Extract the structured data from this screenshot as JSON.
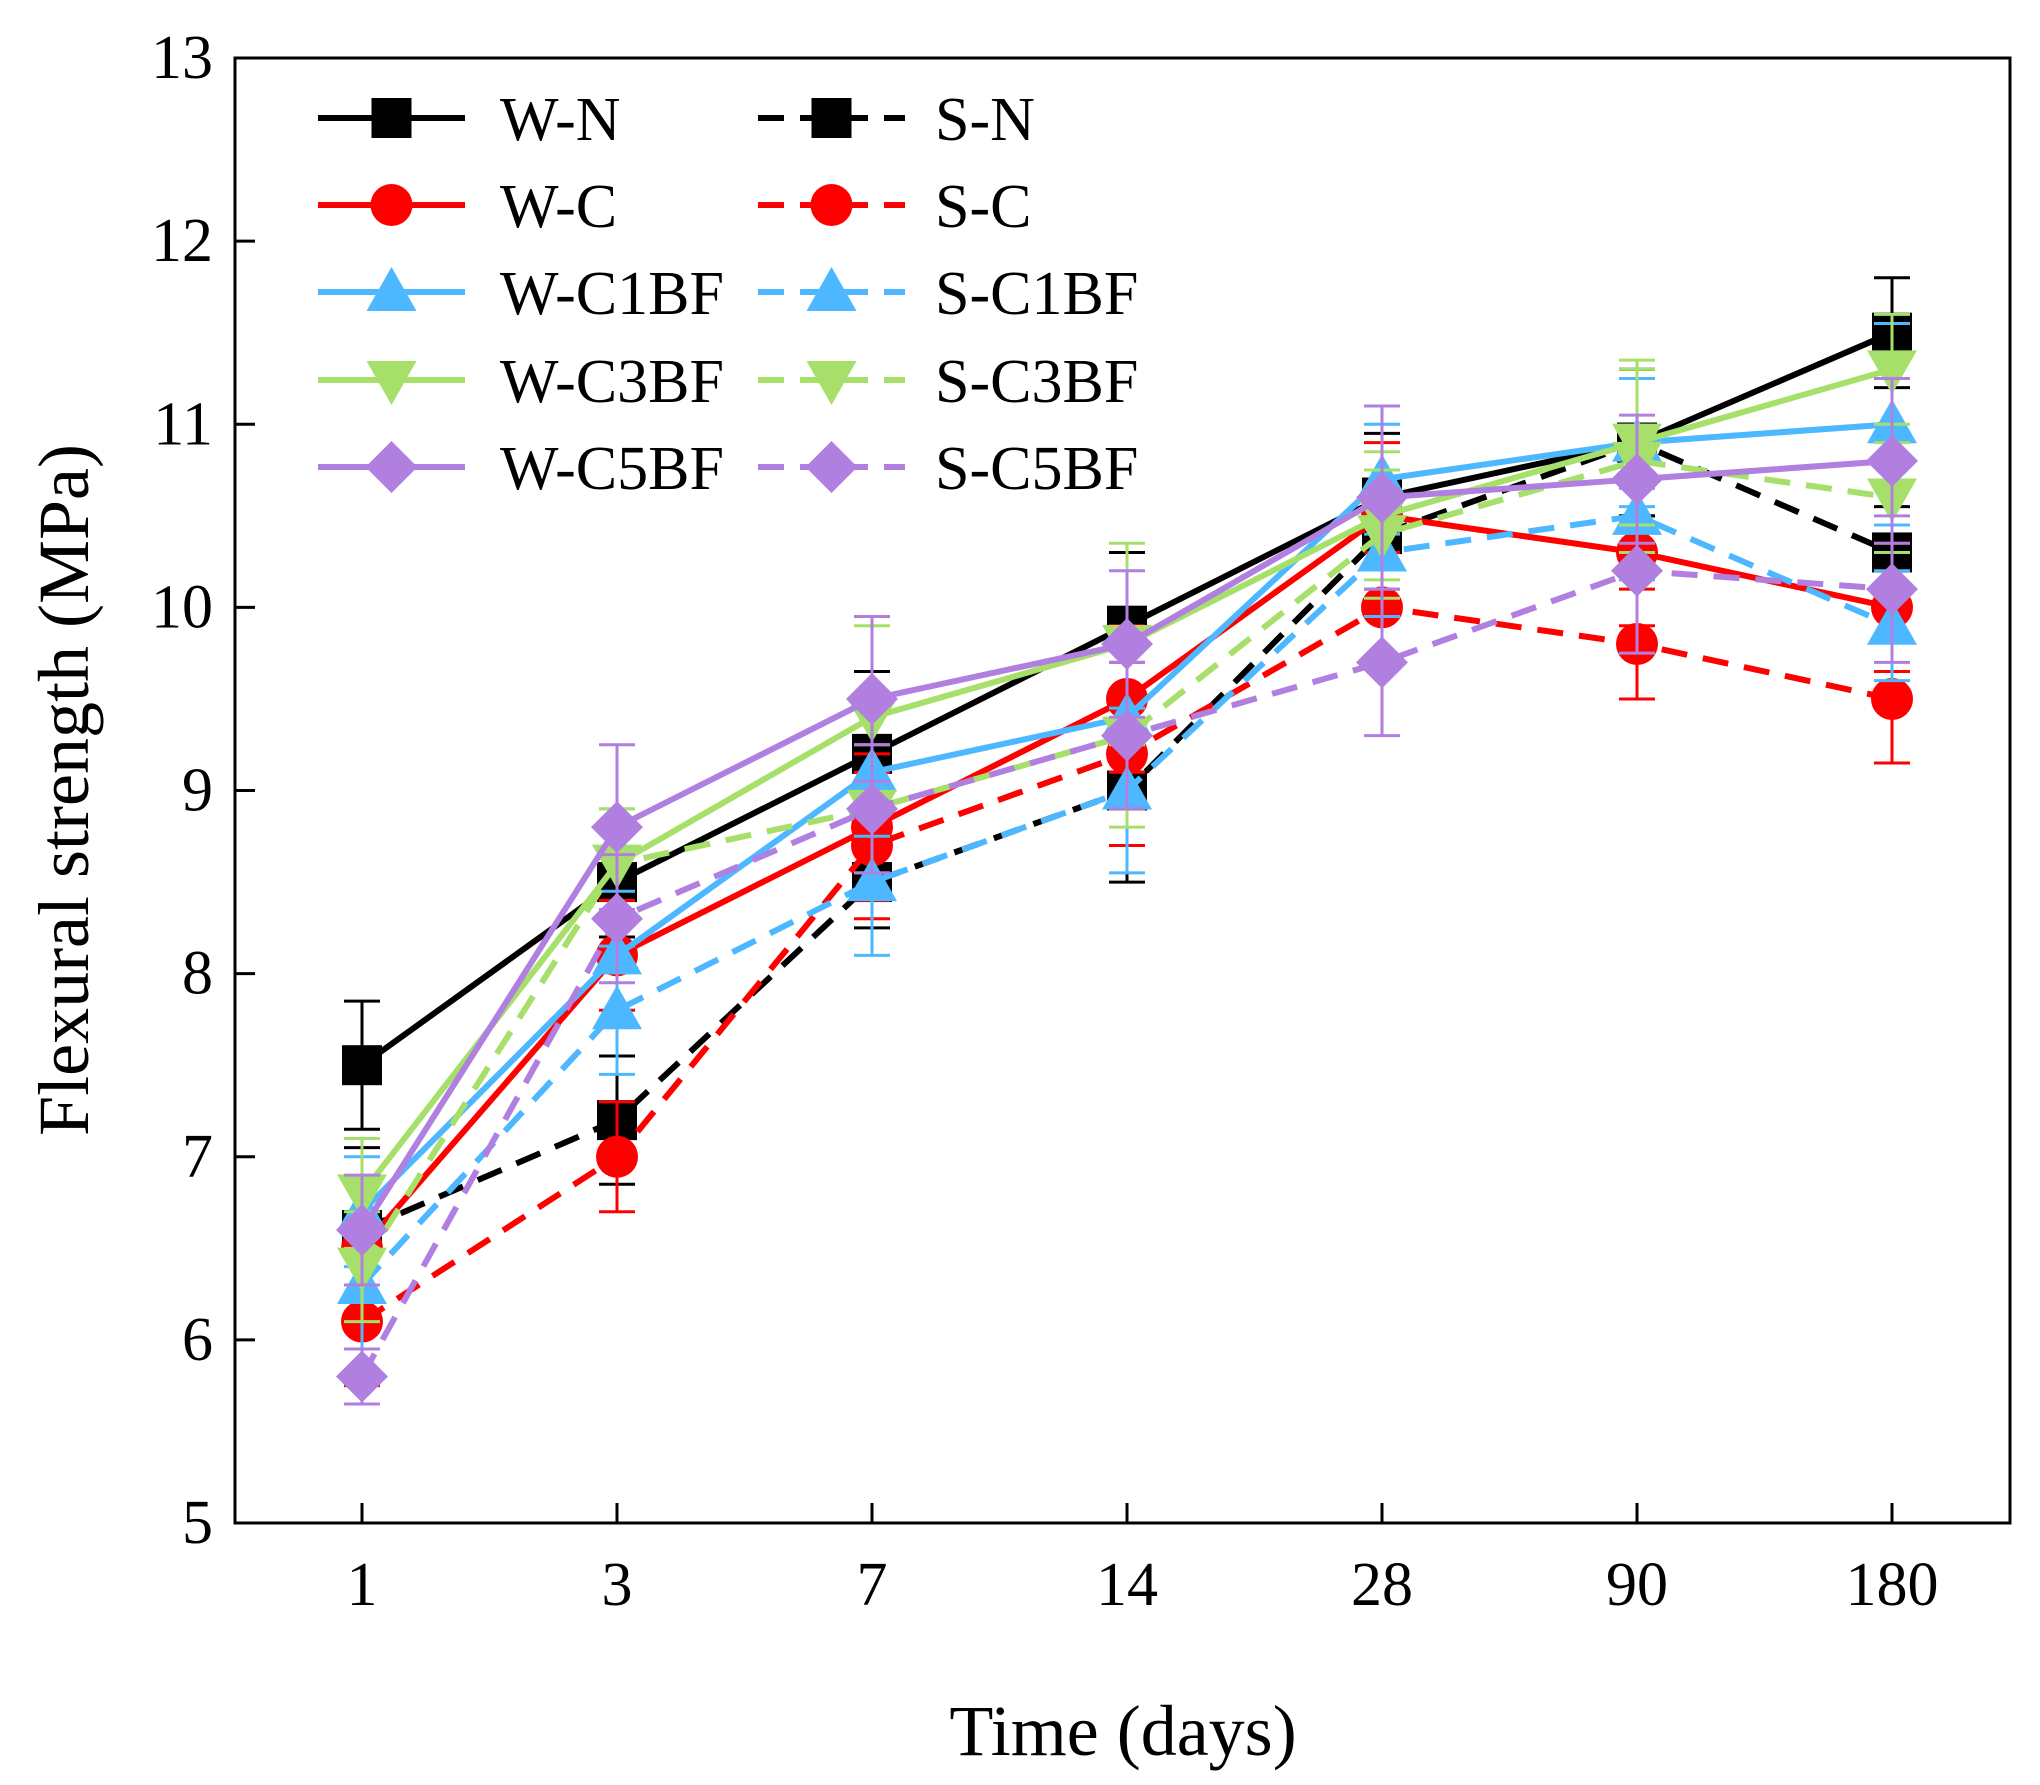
{
  "chart_data": {
    "type": "line",
    "title": "",
    "xlabel": "Time (days)",
    "ylabel": "Flexural strength (MPa)",
    "categories": [
      "1",
      "3",
      "7",
      "14",
      "28",
      "90",
      "180"
    ],
    "ylim": [
      5,
      13
    ],
    "yticks": [
      5,
      6,
      7,
      8,
      9,
      10,
      11,
      12,
      13
    ],
    "grid": false,
    "legend_position": "top-left",
    "series": [
      {
        "name": "W-N",
        "color": "#000000",
        "dash": "solid",
        "marker": "square",
        "values": [
          7.5,
          8.5,
          9.2,
          9.9,
          10.6,
          10.9,
          11.5
        ],
        "errors": [
          0.35,
          0.3,
          0.45,
          0.4,
          0.35,
          0.4,
          0.3
        ]
      },
      {
        "name": "S-N",
        "color": "#000000",
        "dash": "dashed",
        "marker": "square",
        "values": [
          6.6,
          7.2,
          8.5,
          9.0,
          10.4,
          10.9,
          10.3
        ],
        "errors": [
          0.45,
          0.35,
          0.25,
          0.5,
          0.35,
          0.4,
          0.25
        ]
      },
      {
        "name": "W-C",
        "color": "#ff0000",
        "dash": "solid",
        "marker": "circle",
        "values": [
          6.5,
          8.1,
          8.8,
          9.5,
          10.5,
          10.3,
          10.0
        ],
        "errors": [
          0.35,
          0.3,
          0.4,
          0.4,
          0.4,
          0.4,
          0.35
        ]
      },
      {
        "name": "S-C",
        "color": "#ff0000",
        "dash": "dashed",
        "marker": "circle",
        "values": [
          6.1,
          7.0,
          8.7,
          9.2,
          10.0,
          9.8,
          9.5
        ],
        "errors": [
          0.35,
          0.3,
          0.4,
          0.5,
          0.3,
          0.3,
          0.35
        ]
      },
      {
        "name": "W-C1BF",
        "color": "#4db8ff",
        "dash": "solid",
        "marker": "triangle-up",
        "values": [
          6.7,
          8.1,
          9.1,
          9.4,
          10.7,
          10.9,
          11.0
        ],
        "errors": [
          0.3,
          0.35,
          0.35,
          0.45,
          0.3,
          0.35,
          0.55
        ]
      },
      {
        "name": "S-C1BF",
        "color": "#4db8ff",
        "dash": "dashed",
        "marker": "triangle-up",
        "values": [
          6.3,
          7.8,
          8.5,
          9.0,
          10.3,
          10.5,
          9.9
        ],
        "errors": [
          0.35,
          0.35,
          0.4,
          0.45,
          0.35,
          0.35,
          0.3
        ]
      },
      {
        "name": "W-C3BF",
        "color": "#a6e06a",
        "dash": "solid",
        "marker": "triangle-down",
        "values": [
          6.8,
          8.6,
          9.4,
          9.8,
          10.5,
          10.9,
          11.3
        ],
        "errors": [
          0.3,
          0.3,
          0.5,
          0.55,
          0.35,
          0.45,
          0.3
        ]
      },
      {
        "name": "S-C3BF",
        "color": "#a6e06a",
        "dash": "dashed",
        "marker": "triangle-down",
        "values": [
          6.4,
          8.6,
          8.9,
          9.3,
          10.4,
          10.8,
          10.6
        ],
        "errors": [
          0.3,
          0.3,
          0.35,
          0.5,
          0.35,
          0.5,
          0.3
        ]
      },
      {
        "name": "W-C5BF",
        "color": "#b07fe0",
        "dash": "solid",
        "marker": "diamond",
        "values": [
          6.6,
          8.8,
          9.5,
          9.8,
          10.6,
          10.7,
          10.8
        ],
        "errors": [
          0.3,
          0.45,
          0.45,
          0.4,
          0.5,
          0.35,
          0.45
        ]
      },
      {
        "name": "S-C5BF",
        "color": "#b07fe0",
        "dash": "dashed",
        "marker": "diamond",
        "values": [
          5.8,
          8.3,
          8.9,
          9.3,
          9.7,
          10.2,
          10.1
        ],
        "errors": [
          0.15,
          0.35,
          0.35,
          0.4,
          0.4,
          0.45,
          0.4
        ]
      }
    ]
  }
}
